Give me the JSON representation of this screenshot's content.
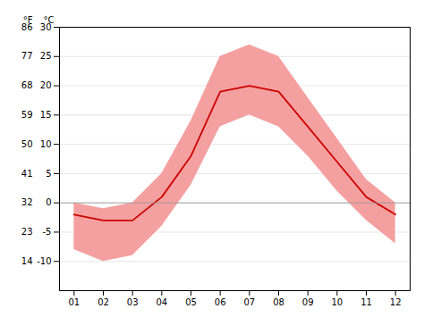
{
  "chart_data": {
    "type": "line",
    "x": [
      1,
      2,
      3,
      4,
      5,
      6,
      7,
      8,
      9,
      10,
      11,
      12
    ],
    "xlim": [
      0.5,
      12.5
    ],
    "xticks": [
      {
        "value": 1,
        "label": "01"
      },
      {
        "value": 2,
        "label": "02"
      },
      {
        "value": 3,
        "label": "03"
      },
      {
        "value": 4,
        "label": "04"
      },
      {
        "value": 5,
        "label": "05"
      },
      {
        "value": 6,
        "label": "06"
      },
      {
        "value": 7,
        "label": "07"
      },
      {
        "value": 8,
        "label": "08"
      },
      {
        "value": 9,
        "label": "09"
      },
      {
        "value": 10,
        "label": "10"
      },
      {
        "value": 11,
        "label": "11"
      },
      {
        "value": 12,
        "label": "12"
      }
    ],
    "series": [
      {
        "type": "area",
        "color": "#f5a0a0",
        "low": [
          -8,
          -10,
          -9,
          -4,
          3,
          13,
          15,
          13,
          8,
          2,
          -3,
          -7
        ],
        "high": [
          0,
          -1,
          0,
          5,
          14,
          25,
          27,
          25,
          18,
          11,
          4,
          0
        ]
      },
      {
        "type": "line",
        "color": "#cc0000",
        "values": [
          -2,
          -3,
          -3,
          1,
          8,
          19,
          20,
          19,
          13,
          7,
          1,
          -2
        ]
      }
    ],
    "ylabel": "°C",
    "ylim": [
      -15,
      30
    ],
    "yticks": [
      -10,
      -5,
      0,
      5,
      10,
      15,
      20,
      25,
      30
    ],
    "y2label": "°F",
    "y2lim": [
      5,
      86
    ],
    "y2ticks": [
      14,
      23,
      32,
      41,
      50,
      59,
      68,
      77,
      86
    ],
    "reference_line": 0,
    "grid": true
  }
}
